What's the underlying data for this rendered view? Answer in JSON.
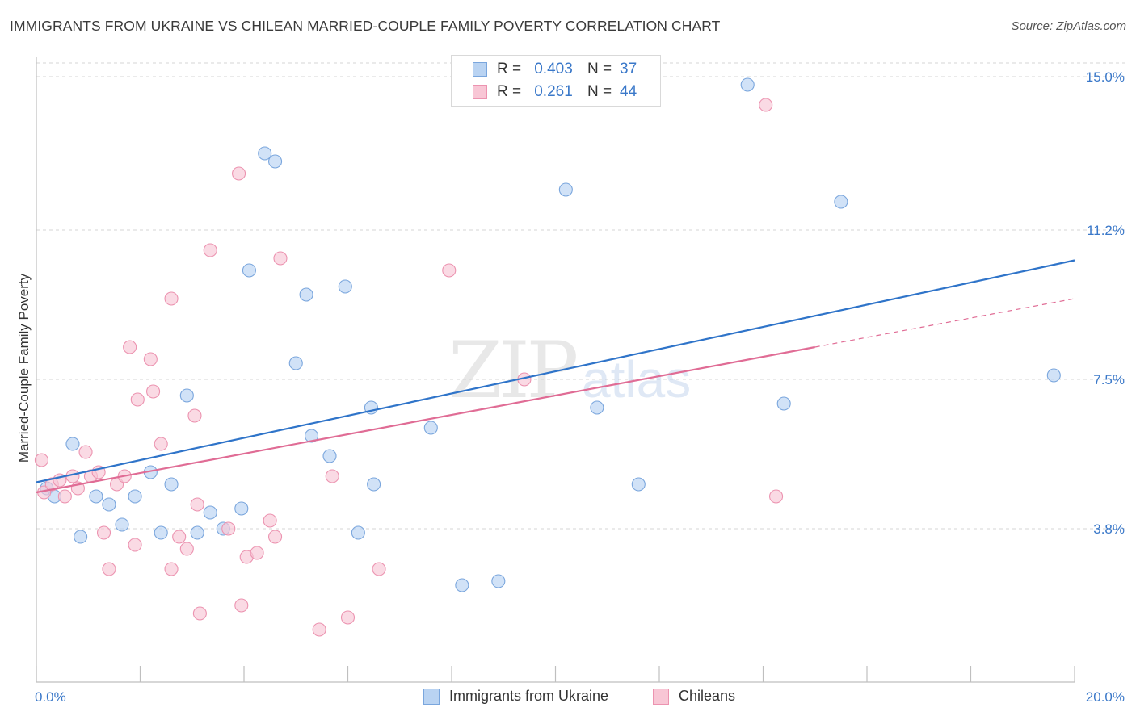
{
  "title": "IMMIGRANTS FROM UKRAINE VS CHILEAN MARRIED-COUPLE FAMILY POVERTY CORRELATION CHART",
  "source": "Source: ZipAtlas.com",
  "watermark": {
    "zip": "ZIP",
    "atlas": "atlas"
  },
  "legend_top": [
    {
      "r_label": "R =",
      "r_value": "0.403",
      "n_label": "N =",
      "n_value": "37"
    },
    {
      "r_label": "R =",
      "r_value": "0.261",
      "n_label": "N =",
      "n_value": "44"
    }
  ],
  "legend_bottom": [
    {
      "label": "Immigrants from Ukraine"
    },
    {
      "label": "Chileans"
    }
  ],
  "colors": {
    "ukraine_fill": "#b9d3f2",
    "ukraine_stroke": "#7aa6dd",
    "ukraine_line": "#2f74c9",
    "chile_fill": "#f8c6d5",
    "chile_stroke": "#ec93b0",
    "chile_line": "#e06c95",
    "axis_label": "#3a78c9",
    "grid": "#d6d6d6"
  },
  "chart_data": {
    "type": "scatter",
    "title": "IMMIGRANTS FROM UKRAINE VS CHILEAN MARRIED-COUPLE FAMILY POVERTY CORRELATION CHART",
    "xlabel": "",
    "ylabel": "Married-Couple Family Poverty",
    "xlim": [
      0,
      20
    ],
    "ylim": [
      0.0,
      15.5
    ],
    "x_tick_labels": [
      "0.0%",
      "20.0%"
    ],
    "x_ticks": [
      0,
      2,
      4,
      6,
      8,
      10,
      12,
      14,
      16,
      18,
      20
    ],
    "y_ticks": [
      3.8,
      7.5,
      11.2,
      15.0
    ],
    "y_tick_labels": [
      "3.8%",
      "7.5%",
      "11.2%",
      "15.0%"
    ],
    "series": [
      {
        "name": "Immigrants from Ukraine",
        "points": [
          [
            0.2,
            4.8
          ],
          [
            0.35,
            4.6
          ],
          [
            0.7,
            5.9
          ],
          [
            0.85,
            3.6
          ],
          [
            1.15,
            4.6
          ],
          [
            1.4,
            4.4
          ],
          [
            1.65,
            3.9
          ],
          [
            1.9,
            4.6
          ],
          [
            2.2,
            5.2
          ],
          [
            2.4,
            3.7
          ],
          [
            2.6,
            4.9
          ],
          [
            2.9,
            7.1
          ],
          [
            3.1,
            3.7
          ],
          [
            3.35,
            4.2
          ],
          [
            3.6,
            3.8
          ],
          [
            3.95,
            4.3
          ],
          [
            4.1,
            10.2
          ],
          [
            4.4,
            13.1
          ],
          [
            4.6,
            12.9
          ],
          [
            5.0,
            7.9
          ],
          [
            5.2,
            9.6
          ],
          [
            5.3,
            6.1
          ],
          [
            5.65,
            5.6
          ],
          [
            5.95,
            9.8
          ],
          [
            6.2,
            3.7
          ],
          [
            6.45,
            6.8
          ],
          [
            6.5,
            4.9
          ],
          [
            7.6,
            6.3
          ],
          [
            8.2,
            2.4
          ],
          [
            8.9,
            2.5
          ],
          [
            10.2,
            12.2
          ],
          [
            10.8,
            6.8
          ],
          [
            11.6,
            4.9
          ],
          [
            13.7,
            14.8
          ],
          [
            14.4,
            6.9
          ],
          [
            15.5,
            11.9
          ],
          [
            19.6,
            7.6
          ]
        ],
        "trend": {
          "x": [
            0,
            20
          ],
          "y": [
            4.95,
            10.45
          ]
        }
      },
      {
        "name": "Chileans",
        "points": [
          [
            0.1,
            5.5
          ],
          [
            0.15,
            4.7
          ],
          [
            0.3,
            4.9
          ],
          [
            0.45,
            5.0
          ],
          [
            0.55,
            4.6
          ],
          [
            0.7,
            5.1
          ],
          [
            0.8,
            4.8
          ],
          [
            0.95,
            5.7
          ],
          [
            1.05,
            5.1
          ],
          [
            1.2,
            5.2
          ],
          [
            1.3,
            3.7
          ],
          [
            1.4,
            2.8
          ],
          [
            1.55,
            4.9
          ],
          [
            1.7,
            5.1
          ],
          [
            1.8,
            8.3
          ],
          [
            1.9,
            3.4
          ],
          [
            1.95,
            7.0
          ],
          [
            2.2,
            8.0
          ],
          [
            2.25,
            7.2
          ],
          [
            2.4,
            5.9
          ],
          [
            2.6,
            2.8
          ],
          [
            2.6,
            9.5
          ],
          [
            2.75,
            3.6
          ],
          [
            2.9,
            3.3
          ],
          [
            3.05,
            6.6
          ],
          [
            3.1,
            4.4
          ],
          [
            3.15,
            1.7
          ],
          [
            3.35,
            10.7
          ],
          [
            3.7,
            3.8
          ],
          [
            3.9,
            12.6
          ],
          [
            3.95,
            1.9
          ],
          [
            4.05,
            3.1
          ],
          [
            4.25,
            3.2
          ],
          [
            4.5,
            4.0
          ],
          [
            4.6,
            3.6
          ],
          [
            4.7,
            10.5
          ],
          [
            5.45,
            1.3
          ],
          [
            5.7,
            5.1
          ],
          [
            6.0,
            1.6
          ],
          [
            6.6,
            2.8
          ],
          [
            7.95,
            10.2
          ],
          [
            9.4,
            7.5
          ],
          [
            14.05,
            14.3
          ],
          [
            14.25,
            4.6
          ]
        ],
        "trend": {
          "x": [
            0,
            15.0
          ],
          "y": [
            4.7,
            8.3
          ]
        },
        "trend_dashed": {
          "x": [
            15.0,
            20
          ],
          "y": [
            8.3,
            9.5
          ]
        }
      }
    ]
  }
}
